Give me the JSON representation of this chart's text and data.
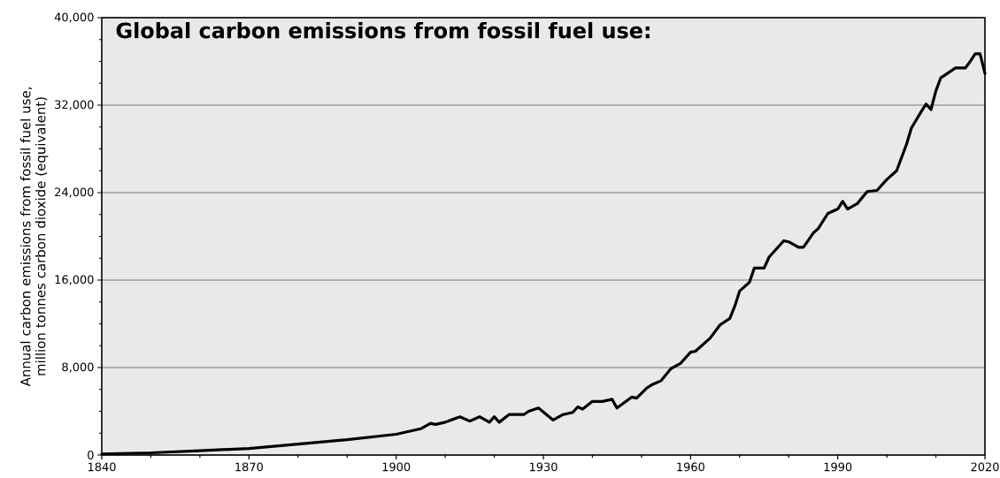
{
  "chart_data": {
    "type": "line",
    "title": "Global carbon emissions from fossil fuel use:",
    "ylabel": "Annual carbon emissions from fossil fuel use, million tonnes carbon dioxide (equivalent)",
    "x": [
      1840,
      1850,
      1860,
      1870,
      1880,
      1890,
      1900,
      1905,
      1907,
      1908,
      1910,
      1913,
      1915,
      1917,
      1919,
      1920,
      1921,
      1923,
      1926,
      1927,
      1929,
      1932,
      1934,
      1936,
      1937,
      1938,
      1940,
      1942,
      1944,
      1945,
      1948,
      1949,
      1951,
      1952,
      1954,
      1956,
      1958,
      1960,
      1961,
      1964,
      1966,
      1968,
      1969,
      1970,
      1972,
      1973,
      1975,
      1976,
      1979,
      1980,
      1982,
      1983,
      1985,
      1986,
      1988,
      1990,
      1991,
      1992,
      1994,
      1996,
      1998,
      2000,
      2002,
      2004,
      2005,
      2007,
      2008,
      2009,
      2010,
      2011,
      2014,
      2016,
      2017,
      2018,
      2019,
      2020
    ],
    "series": [
      {
        "color": "#000000",
        "values": [
          100,
          200,
          400,
          600,
          1000,
          1400,
          1900,
          2400,
          2900,
          2800,
          3000,
          3500,
          3100,
          3500,
          3000,
          3500,
          3000,
          3700,
          3700,
          4000,
          4300,
          3200,
          3700,
          3900,
          4400,
          4200,
          4900,
          4900,
          5100,
          4300,
          5300,
          5200,
          6100,
          6400,
          6800,
          7900,
          8400,
          9400,
          9500,
          10700,
          11900,
          12500,
          13600,
          15000,
          15800,
          17100,
          17100,
          18100,
          19600,
          19500,
          19000,
          19000,
          20300,
          20700,
          22100,
          22500,
          23200,
          22500,
          23000,
          24100,
          24200,
          25200,
          26000,
          28400,
          29900,
          31400,
          32100,
          31600,
          33300,
          34500,
          35400,
          35400,
          36000,
          36700,
          36700,
          34900
        ]
      }
    ],
    "xlim": [
      1840,
      2020
    ],
    "xticks": [
      1840,
      {
        "value": 1850,
        "label": null
      },
      {
        "value": 1860,
        "label": null
      },
      1870,
      {
        "value": 1880,
        "label": null
      },
      {
        "value": 1890,
        "label": null
      },
      1900,
      {
        "value": 1910,
        "label": null
      },
      {
        "value": 1920,
        "label": null
      },
      1930,
      {
        "value": 1940,
        "label": null
      },
      {
        "value": 1950,
        "label": null
      },
      1960,
      {
        "value": 1970,
        "label": null
      },
      {
        "value": 1980,
        "label": null
      },
      1990,
      {
        "value": 2000,
        "label": null
      },
      {
        "value": 2010,
        "label": null
      },
      2020
    ],
    "ylim": [
      0,
      40000
    ],
    "yticks": [
      {
        "value": 0,
        "label": "0"
      },
      {
        "value": 2000,
        "label": null
      },
      {
        "value": 4000,
        "label": null
      },
      {
        "value": 6000,
        "label": null
      },
      {
        "value": 8000,
        "label": "8,000"
      },
      {
        "value": 10000,
        "label": null
      },
      {
        "value": 12000,
        "label": null
      },
      {
        "value": 14000,
        "label": null
      },
      {
        "value": 16000,
        "label": "16,000"
      },
      {
        "value": 18000,
        "label": null
      },
      {
        "value": 20000,
        "label": null
      },
      {
        "value": 22000,
        "label": null
      },
      {
        "value": 24000,
        "label": "24,000"
      },
      {
        "value": 26000,
        "label": null
      },
      {
        "value": 28000,
        "label": null
      },
      {
        "value": 30000,
        "label": null
      },
      {
        "value": 32000,
        "label": "32,000"
      },
      {
        "value": 34000,
        "label": null
      },
      {
        "value": 36000,
        "label": null
      },
      {
        "value": 38000,
        "label": null
      },
      {
        "value": 40000,
        "label": "40,000"
      }
    ],
    "grid": "y",
    "marker": "none",
    "line_style": "solid"
  }
}
